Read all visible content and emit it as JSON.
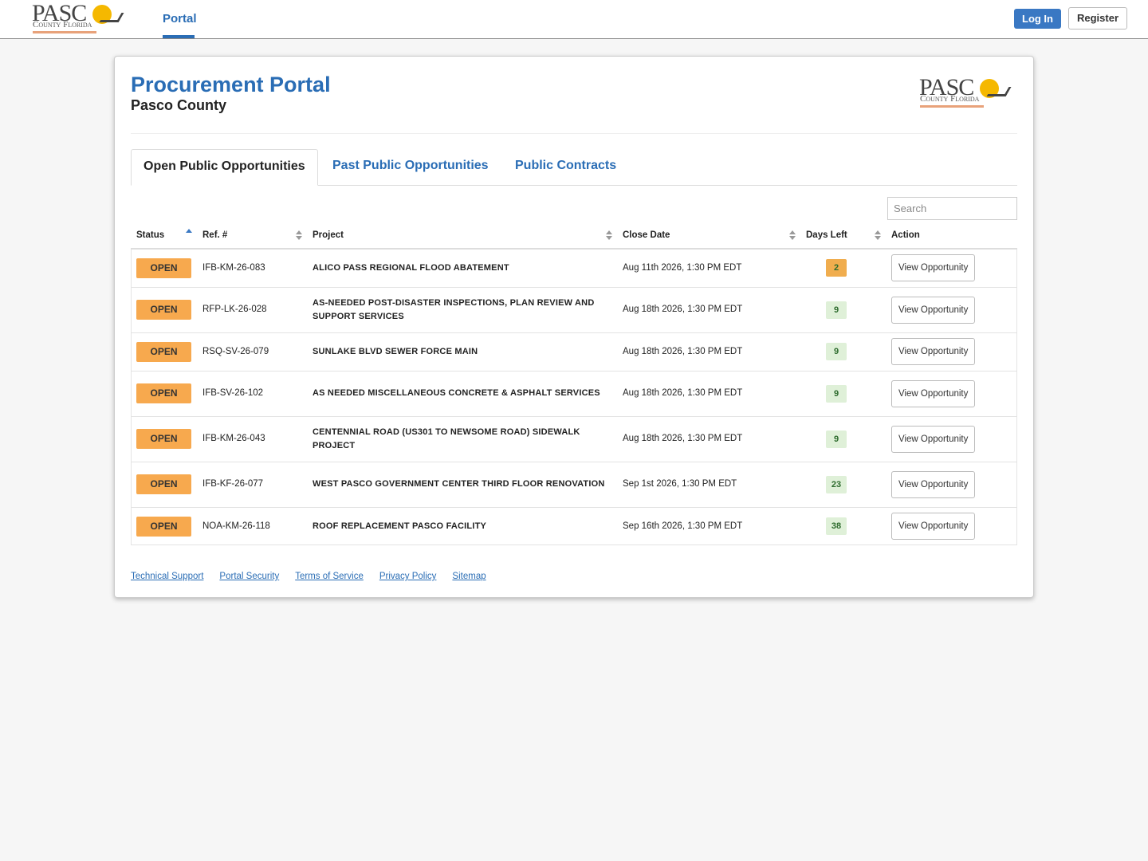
{
  "logo": {
    "word": "PASC",
    "sub": "County Florida"
  },
  "nav": {
    "portal": "Portal",
    "login": "Log In",
    "register": "Register"
  },
  "header": {
    "title": "Procurement Portal",
    "subtitle": "Pasco County"
  },
  "tabs": [
    "Open Public Opportunities",
    "Past Public Opportunities",
    "Public Contracts"
  ],
  "search_placeholder": "Search",
  "table": {
    "columns": [
      "Status",
      "Ref. #",
      "Project",
      "Close Date",
      "Days Left",
      "Action"
    ],
    "rows": [
      {
        "status": "OPEN",
        "ref": "IFB-KM-26-083",
        "project": "ALICO PASS REGIONAL FLOOD ABATEMENT",
        "close_date": "Aug 11th 2026, 1:30 PM EDT",
        "days_left": 2,
        "days_color": "#f0ad4e",
        "action": "View Opportunity"
      },
      {
        "status": "OPEN",
        "ref": "RFP-LK-26-028",
        "project": "AS-NEEDED POST-DISASTER INSPECTIONS, PLAN REVIEW AND SUPPORT SERVICES",
        "close_date": "Aug 18th 2026, 1:30 PM EDT",
        "days_left": 9,
        "days_color": "#dff0d8",
        "action": "View Opportunity"
      },
      {
        "status": "OPEN",
        "ref": "RSQ-SV-26-079",
        "project": "SUNLAKE BLVD SEWER FORCE MAIN",
        "close_date": "Aug 18th 2026, 1:30 PM EDT",
        "days_left": 9,
        "days_color": "#dff0d8",
        "action": "View Opportunity"
      },
      {
        "status": "OPEN",
        "ref": "IFB-SV-26-102",
        "project": "AS NEEDED MISCELLANEOUS CONCRETE & ASPHALT SERVICES",
        "close_date": "Aug 18th 2026, 1:30 PM EDT",
        "days_left": 9,
        "days_color": "#dff0d8",
        "action": "View Opportunity"
      },
      {
        "status": "OPEN",
        "ref": "IFB-KM-26-043",
        "project": "CENTENNIAL ROAD (US301 TO NEWSOME ROAD) SIDEWALK PROJECT",
        "close_date": "Aug 18th 2026, 1:30 PM EDT",
        "days_left": 9,
        "days_color": "#dff0d8",
        "action": "View Opportunity"
      },
      {
        "status": "OPEN",
        "ref": "IFB-KF-26-077",
        "project": "WEST PASCO GOVERNMENT CENTER THIRD FLOOR RENOVATION",
        "close_date": "Sep 1st 2026, 1:30 PM EDT",
        "days_left": 23,
        "days_color": "#dff0d8",
        "action": "View Opportunity"
      },
      {
        "status": "OPEN",
        "ref": "NOA-KM-26-118",
        "project": "ROOF REPLACEMENT PASCO FACILITY",
        "close_date": "Sep 16th 2026, 1:30 PM EDT",
        "days_left": 38,
        "days_color": "#dff0d8",
        "action": "View Opportunity"
      }
    ]
  },
  "footer": [
    "Technical Support",
    "Portal Security",
    "Terms of Service",
    "Privacy Policy",
    "Sitemap"
  ]
}
